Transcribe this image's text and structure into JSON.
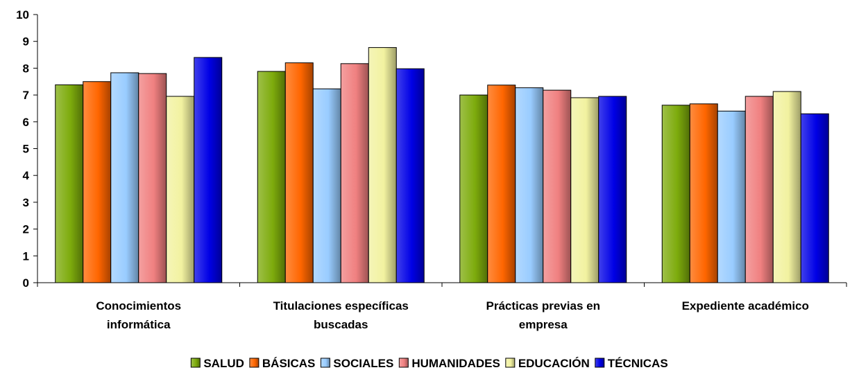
{
  "chart_data": {
    "type": "bar",
    "title": "",
    "xlabel": "",
    "ylabel": "",
    "ylim": [
      0,
      10
    ],
    "yticks": [
      0,
      1,
      2,
      3,
      4,
      5,
      6,
      7,
      8,
      9,
      10
    ],
    "grid": false,
    "legend_position": "bottom",
    "categories": [
      [
        "Conocimientos",
        "informática"
      ],
      [
        "Titulaciones específicas",
        "buscadas"
      ],
      [
        "Prácticas previas en",
        "empresa"
      ],
      [
        "Expediente académico"
      ]
    ],
    "series": [
      {
        "name": "SALUD",
        "color": "#7dab0c",
        "values": [
          7.38,
          7.88,
          7.0,
          6.62
        ]
      },
      {
        "name": "BÁSICAS",
        "color": "#ff6600",
        "values": [
          7.5,
          8.2,
          7.37,
          6.67
        ]
      },
      {
        "name": "SOCIALES",
        "color": "#99ccff",
        "values": [
          7.83,
          7.23,
          7.27,
          6.4
        ]
      },
      {
        "name": "HUMANIDADES",
        "color": "#f08080",
        "values": [
          7.8,
          8.17,
          7.18,
          6.95
        ]
      },
      {
        "name": "EDUCACIÓN",
        "color": "#f2f2a0",
        "values": [
          6.95,
          8.77,
          6.9,
          7.13
        ]
      },
      {
        "name": "TÉCNICAS",
        "color": "#0000e6",
        "values": [
          8.4,
          7.98,
          6.95,
          6.3
        ]
      }
    ]
  }
}
